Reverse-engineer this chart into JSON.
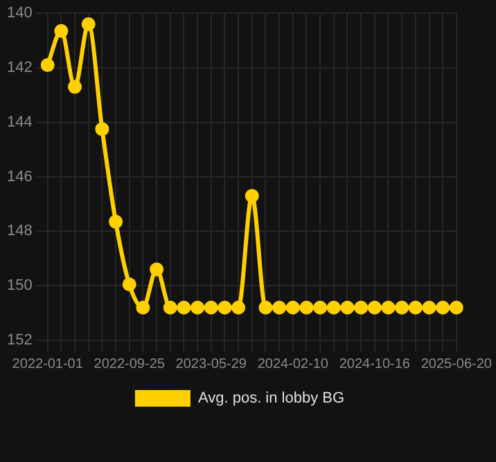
{
  "chart_data": {
    "type": "line",
    "categories": [
      "2022-01-01",
      null,
      null,
      null,
      null,
      null,
      "2022-09-25",
      null,
      null,
      null,
      null,
      null,
      "2023-05-29",
      null,
      null,
      null,
      null,
      null,
      "2024-02-10",
      null,
      null,
      null,
      null,
      null,
      "2024-10-16",
      null,
      null,
      null,
      null,
      null,
      "2025-06-20"
    ],
    "series": [
      {
        "name": "Avg. pos. in lobby BG",
        "color": "#ffd000",
        "values": [
          141.9,
          140.65,
          142.7,
          140.4,
          144.25,
          147.65,
          149.95,
          150.8,
          149.4,
          150.8,
          150.8,
          150.8,
          150.8,
          150.8,
          150.8,
          146.7,
          150.8,
          150.8,
          150.8,
          150.8,
          150.8,
          150.8,
          150.8,
          150.8,
          150.8,
          150.8,
          150.8,
          150.8,
          150.8,
          150.8,
          150.8
        ]
      }
    ],
    "ylim": [
      152,
      140
    ],
    "yticks": [
      140,
      142,
      144,
      146,
      148,
      150,
      152
    ],
    "grid": true,
    "legend": "bottom",
    "marker": "circle",
    "line_style": "solid"
  }
}
